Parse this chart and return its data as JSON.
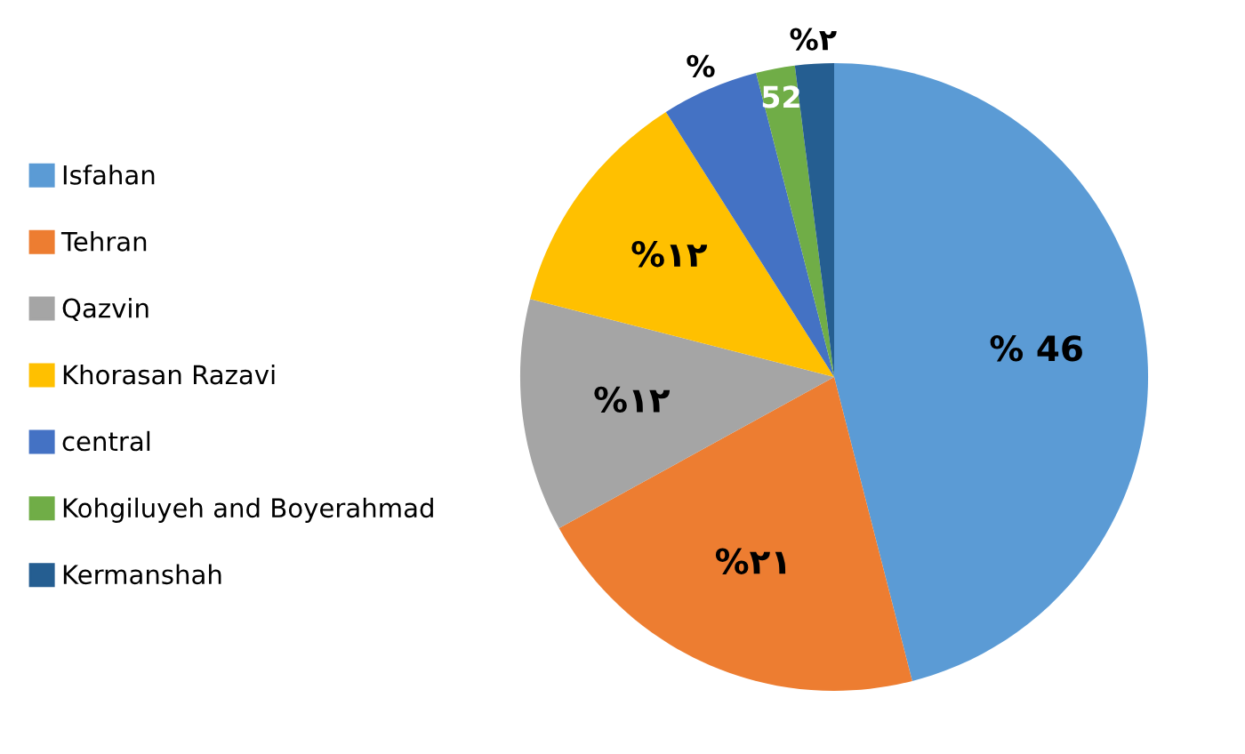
{
  "chart_data": {
    "type": "pie",
    "categories": [
      "Isfahan",
      "Tehran",
      "Qazvin",
      "Khorasan Razavi",
      "central",
      "Kohgiluyeh and Boyerahmad",
      "Kermanshah"
    ],
    "values": [
      46,
      21,
      12,
      12,
      5,
      2,
      2
    ],
    "colors": [
      "#5b9bd5",
      "#ed7d31",
      "#a5a5a5",
      "#ffc000",
      "#4472c4",
      "#70ad47",
      "#255e91"
    ],
    "value_labels": [
      "% 46",
      "%۲۱",
      "%۱۲",
      "%۱۲",
      "%",
      null,
      "%۲"
    ],
    "annotations": [
      {
        "text": "52",
        "x": "Kohgiluyeh and Boyerahmad"
      }
    ],
    "legend": "left"
  }
}
